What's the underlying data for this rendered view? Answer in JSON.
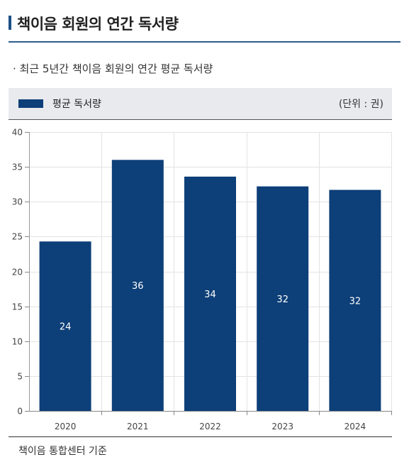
{
  "title": "책이음 회원의 연간 독서량",
  "subtitle": "· 최근 5년간 책이음 회원의 연간 평균 독서량",
  "legend": {
    "label": "평균 독서량",
    "unit": "(단위 : 권)"
  },
  "footer": "책이음 통합센터 기준",
  "colors": {
    "bar": "#0d3f78",
    "accent": "#1d4f86"
  },
  "chart_data": {
    "type": "bar",
    "categories": [
      "2020",
      "2021",
      "2022",
      "2023",
      "2024"
    ],
    "series": [
      {
        "name": "평균 독서량",
        "values": [
          24.3,
          36.0,
          33.6,
          32.2,
          31.7
        ]
      }
    ],
    "data_labels": [
      "24",
      "36",
      "34",
      "32",
      "32"
    ],
    "ylim": [
      0,
      40
    ],
    "yticks": [
      "0",
      "5",
      "10",
      "15",
      "20",
      "25",
      "30",
      "35",
      "40"
    ],
    "grid": true,
    "legend_position": "top-left"
  }
}
